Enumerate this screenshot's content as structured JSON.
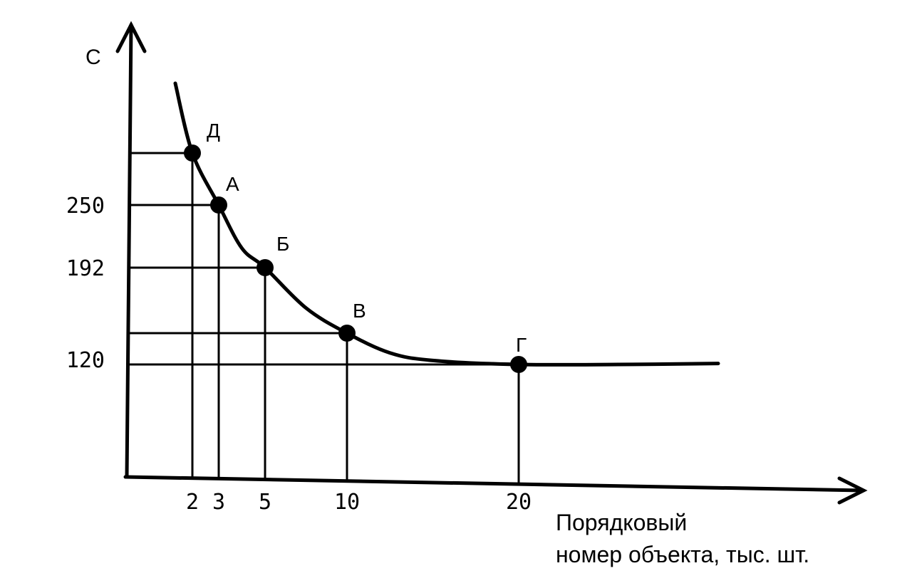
{
  "chart_data": {
    "type": "line",
    "ylabel": "С",
    "xlabel_lines": [
      "Порядковый",
      "номер объекта, тыс. шт."
    ],
    "x_ticks": [
      "2",
      "3",
      "5",
      "10",
      "20"
    ],
    "y_ticks": [
      "250",
      "192",
      "120"
    ],
    "curve_x": [
      1.5,
      2,
      3,
      4,
      5,
      7.5,
      10,
      12.5,
      15,
      20,
      24,
      28
    ],
    "curve_y": [
      435,
      318,
      250,
      210,
      192,
      155,
      132,
      123,
      119,
      115,
      115,
      116
    ],
    "points": [
      {
        "label": "Д",
        "x": 2,
        "y": 318
      },
      {
        "label": "А",
        "x": 3,
        "y": 250
      },
      {
        "label": "Б",
        "x": 5,
        "y": 192
      },
      {
        "label": "В",
        "x": 10,
        "y": 132
      },
      {
        "label": "Г",
        "x": 20,
        "y": 115
      }
    ],
    "grid": false,
    "legend": "none"
  }
}
